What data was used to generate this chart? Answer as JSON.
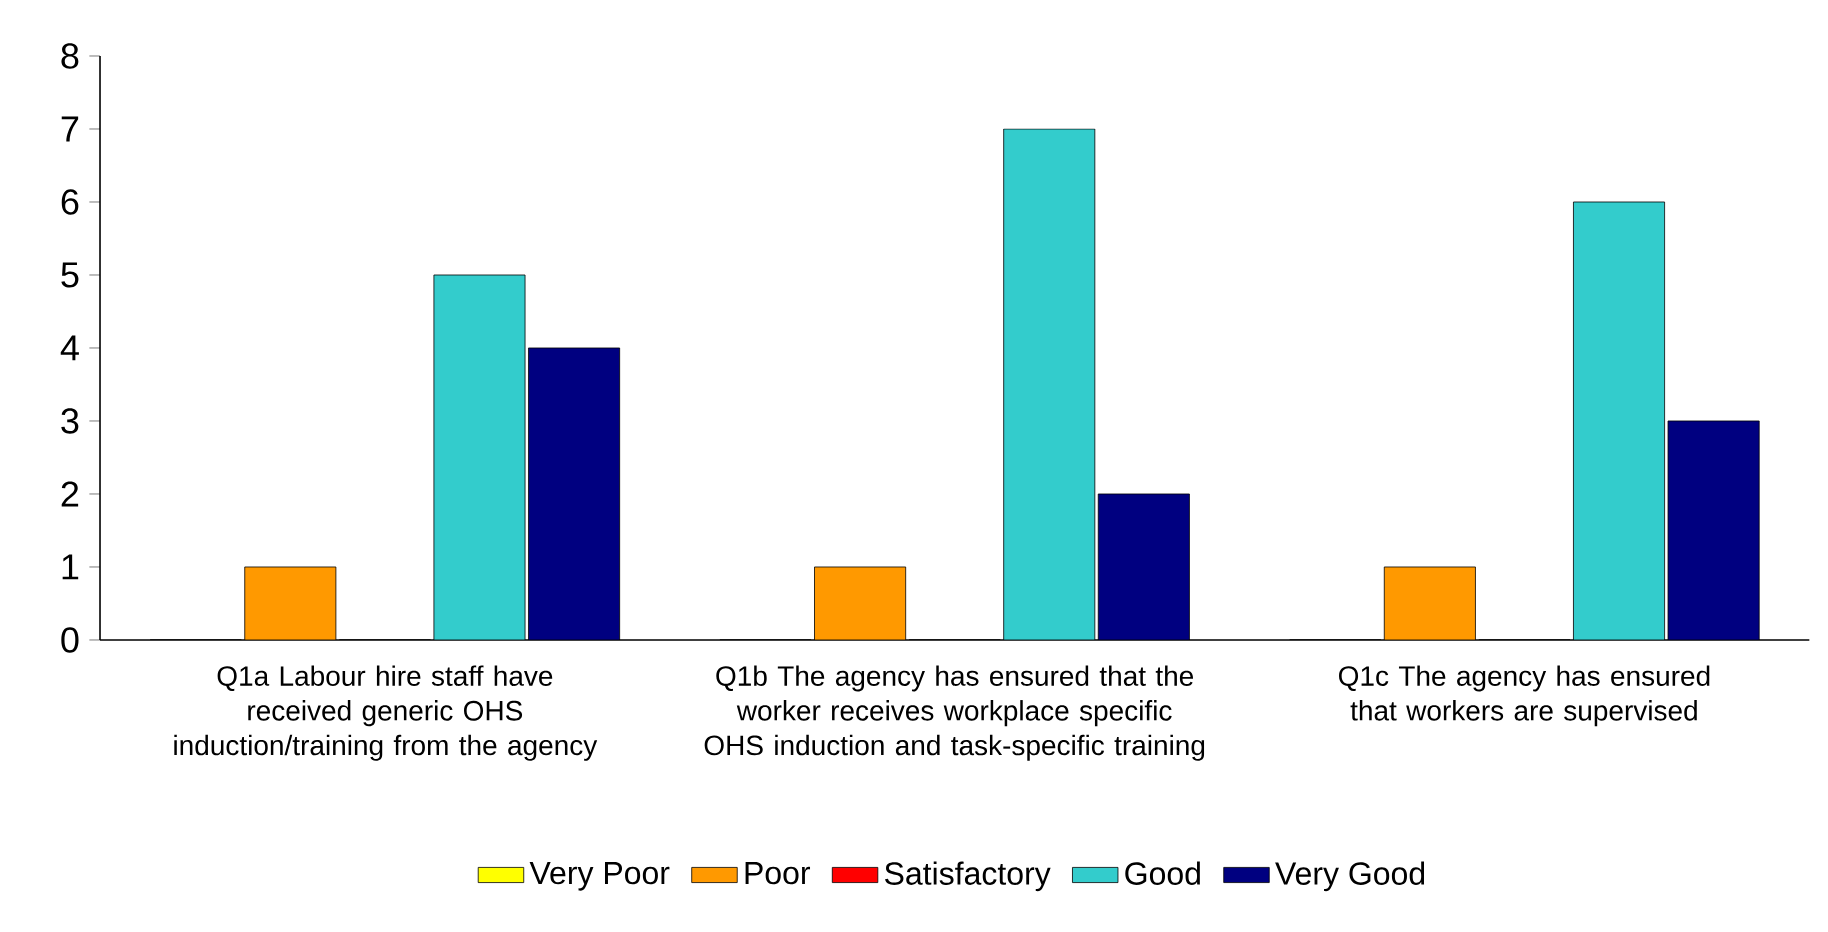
{
  "chart_data": {
    "type": "bar",
    "categories": [
      "Q1a Labour hire staff have received generic OHS induction/training from the agency",
      "Q1b The agency has ensured that the worker receives workplace specific OHS induction and task-specific training",
      "Q1c The agency has ensured that workers are supervised"
    ],
    "series": [
      {
        "name": "Very Poor",
        "color": "#ffff00",
        "values": [
          0,
          0,
          0
        ]
      },
      {
        "name": "Poor",
        "color": "#ff9900",
        "values": [
          1,
          1,
          1
        ]
      },
      {
        "name": "Satisfactory",
        "color": "#ff0000",
        "values": [
          0,
          0,
          0
        ]
      },
      {
        "name": "Good",
        "color": "#33cccc",
        "values": [
          5,
          7,
          6
        ]
      },
      {
        "name": "Very Good",
        "color": "#000080",
        "values": [
          4,
          2,
          3
        ]
      }
    ],
    "ylim": [
      0,
      8
    ],
    "yticks": [
      0,
      1,
      2,
      3,
      4,
      5,
      6,
      7,
      8
    ],
    "grid": false,
    "legend": "bottom"
  }
}
